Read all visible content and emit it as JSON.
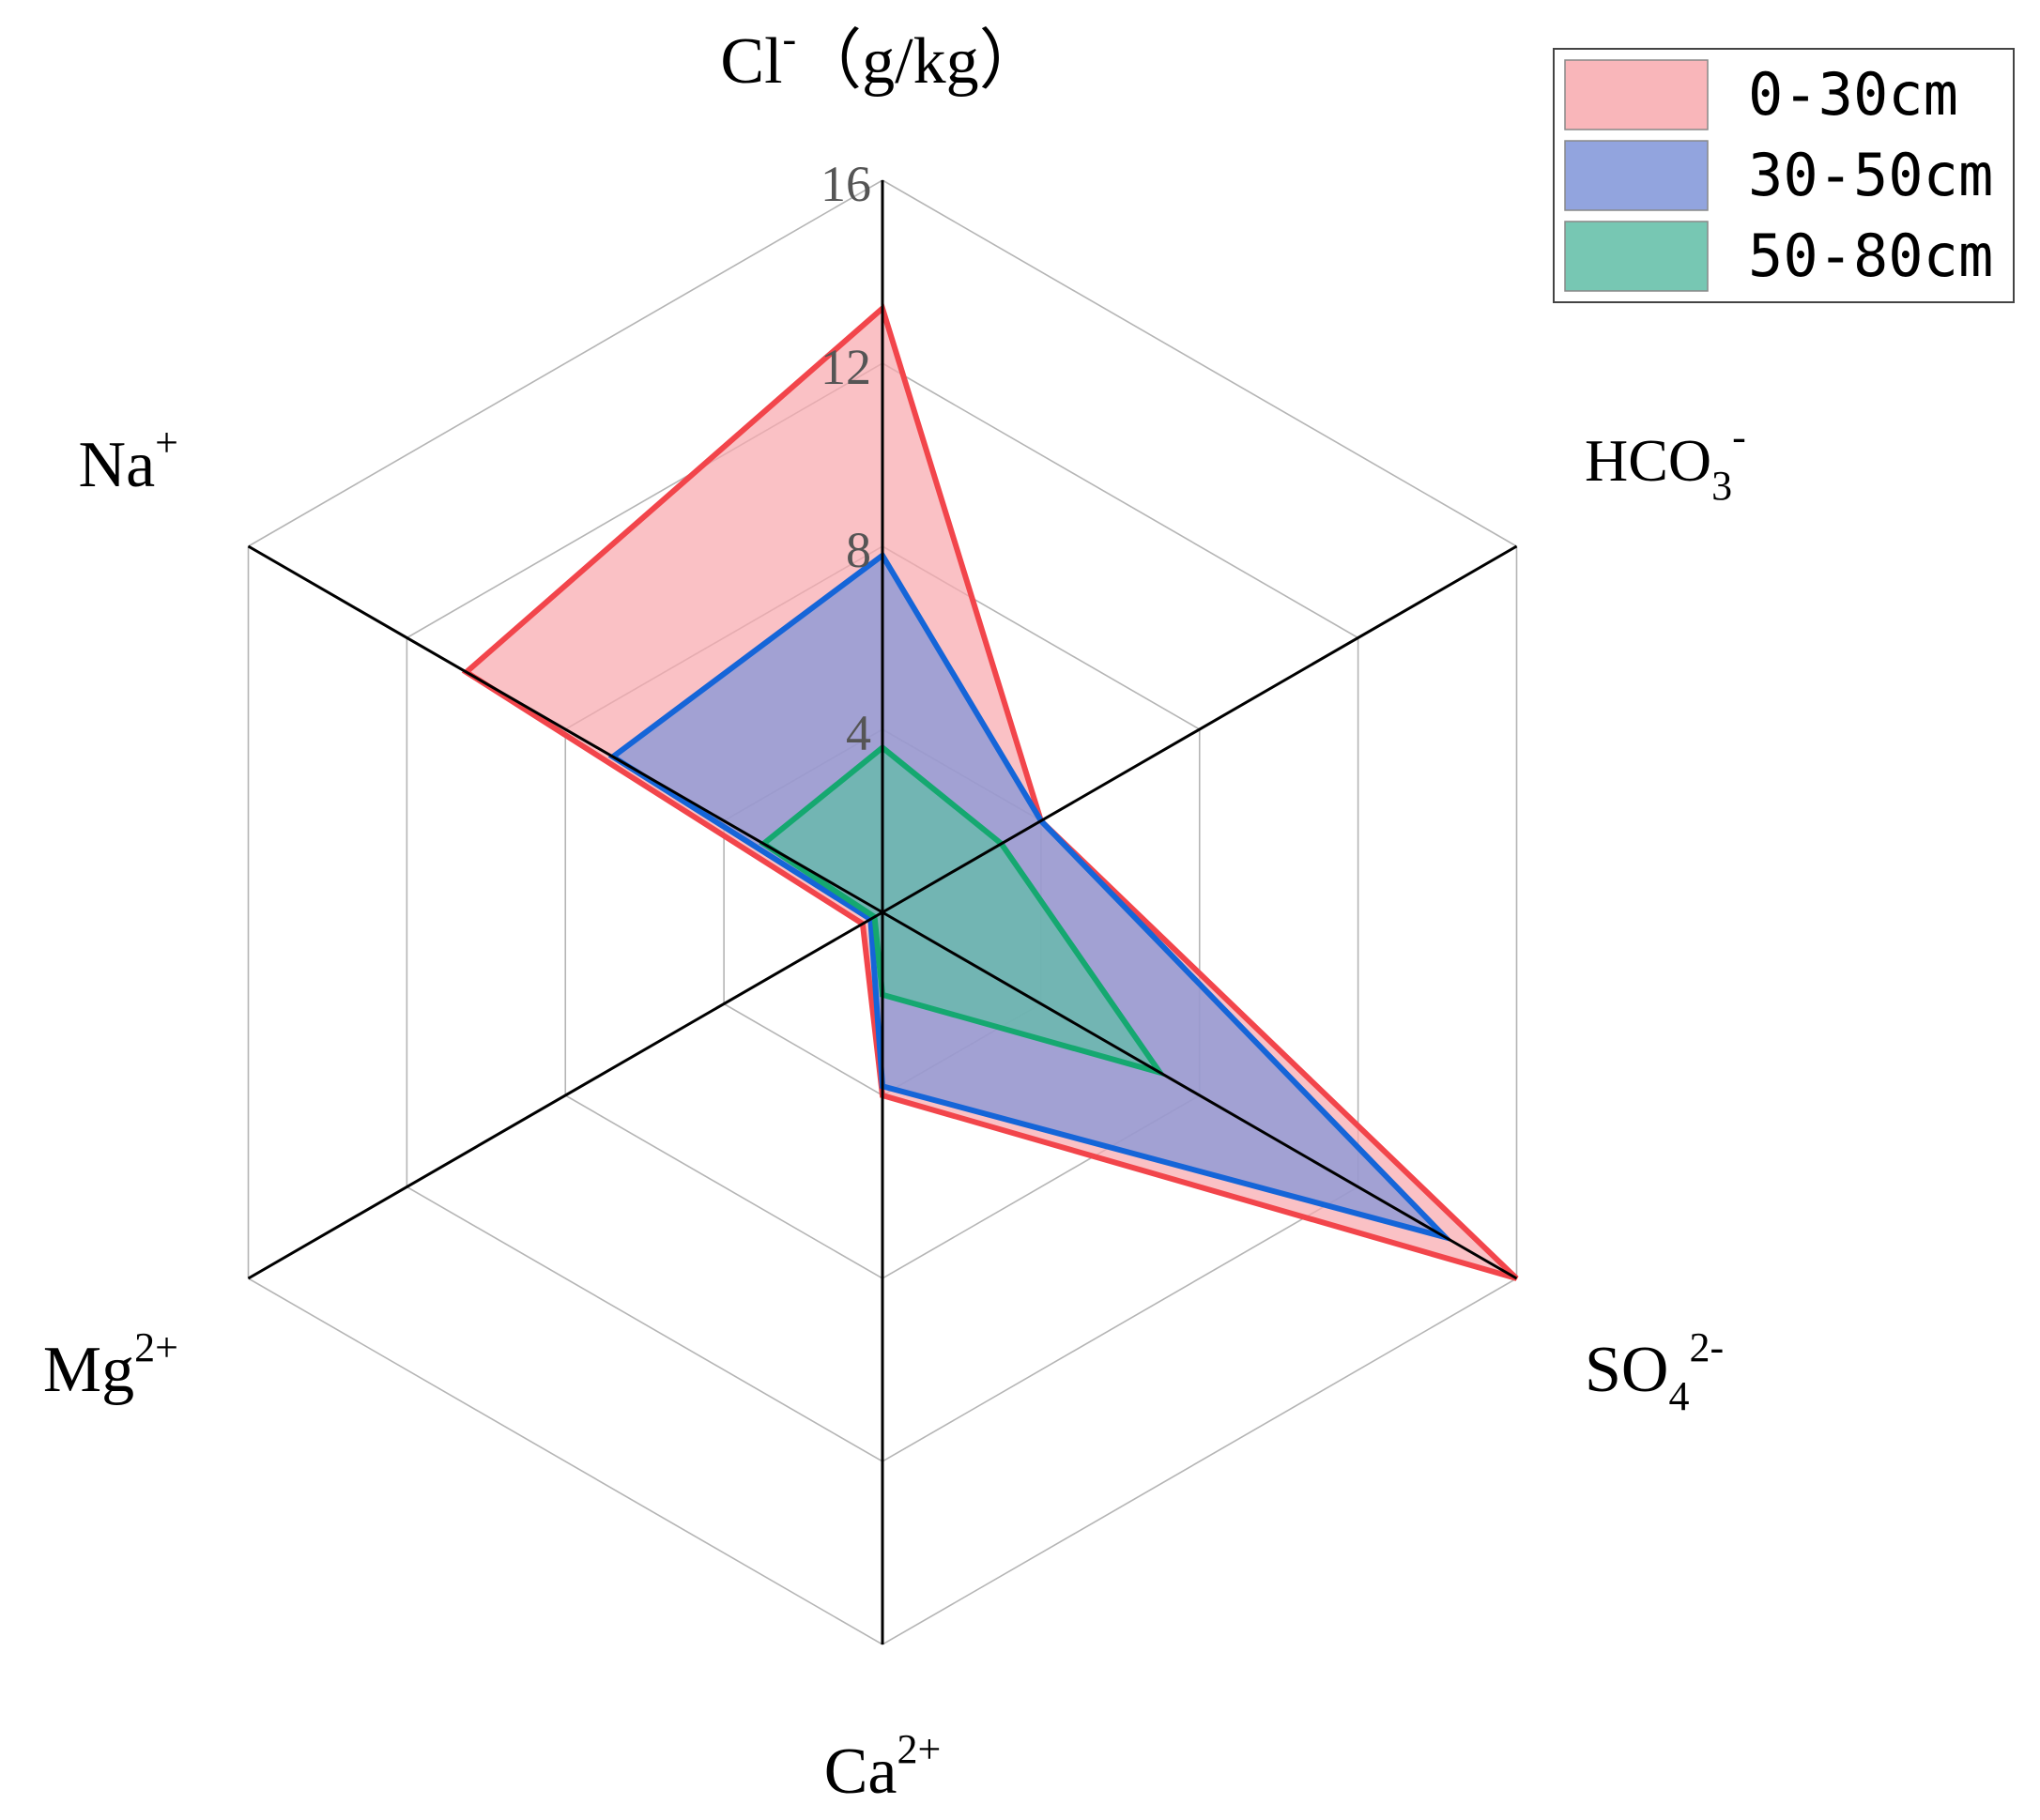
{
  "chart_data": {
    "type": "radar",
    "axes": [
      {
        "name": "Cl",
        "sup": "-",
        "sub": "",
        "unit": "（g/kg）"
      },
      {
        "name": "HCO",
        "sub": "3",
        "sup": "-",
        "unit": ""
      },
      {
        "name": "SO",
        "sub": "4",
        "sup": "2-",
        "unit": ""
      },
      {
        "name": "Ca",
        "sub": "",
        "sup": "2+",
        "unit": ""
      },
      {
        "name": "Mg",
        "sub": "",
        "sup": "2+",
        "unit": ""
      },
      {
        "name": "Na",
        "sub": "",
        "sup": "+",
        "unit": ""
      }
    ],
    "rlim": [
      0,
      16
    ],
    "ticks": [
      "4",
      "8",
      "12",
      "16"
    ],
    "grid": true,
    "legend_position": "top-right",
    "series": [
      {
        "name": "0-30cm",
        "values": [
          13.2,
          4.0,
          16.0,
          4.0,
          0.5,
          10.5
        ],
        "stroke": "#f2454b",
        "fill": "#f8a9ae"
      },
      {
        "name": "30-50cm",
        "values": [
          7.8,
          4.0,
          14.2,
          3.8,
          0.3,
          6.8
        ],
        "stroke": "#1565d8",
        "fill": "#7f94d8"
      },
      {
        "name": "50-80cm",
        "values": [
          3.6,
          3.0,
          7.0,
          1.8,
          0.2,
          3.0
        ],
        "stroke": "#15a870",
        "fill": "#5fbda6"
      }
    ]
  }
}
